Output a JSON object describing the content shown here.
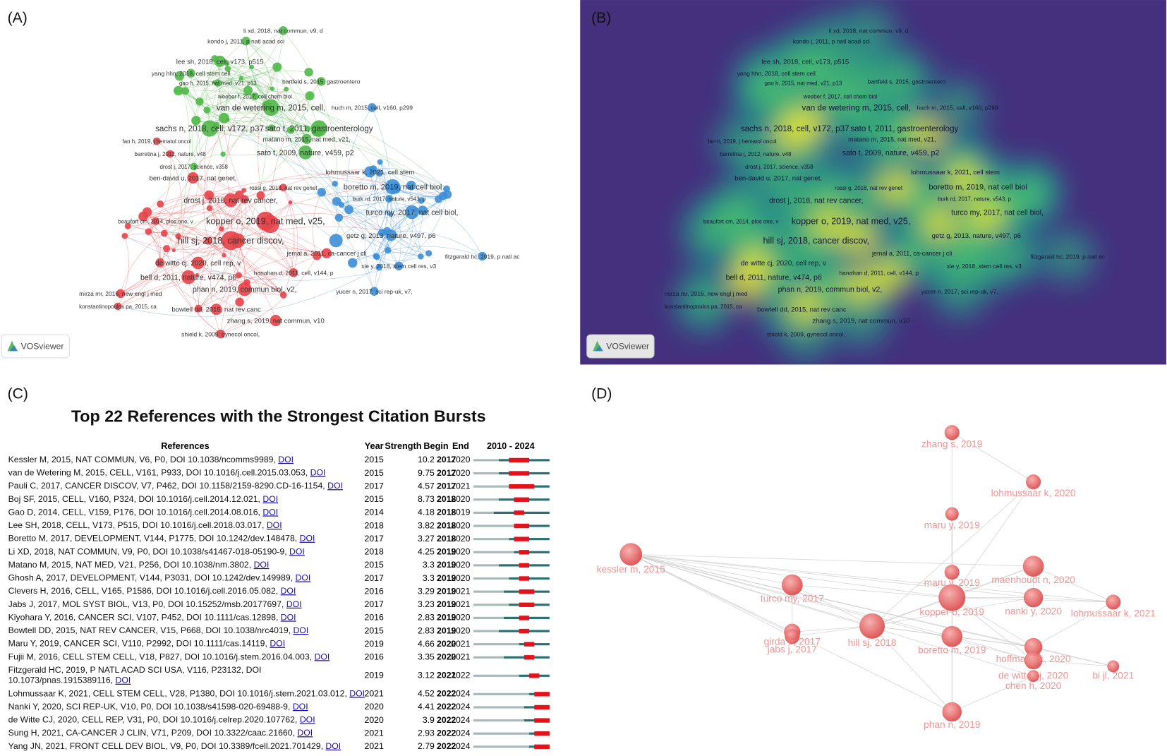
{
  "panels": {
    "a": {
      "label": "(A)",
      "watermark": "VOSviewer",
      "labels": [
        "li xd, 2018, nat commun, v9, d",
        "kondo j, 2011, p natl acad sci",
        "lee sh, 2018, cell, v173, p515",
        "yang hhn, 2018, cell stem cell",
        "gao h, 2015, nat med, v21, p13",
        "bartfeld s, 2015, gastroentero",
        "weeber f, 2017, cell chem biol",
        "van de wetering m, 2015, cell,",
        "huch m, 2015, cell, v160, p299",
        "sachs n, 2018, cell, v172, p37",
        "sato t, 2011, gastroenterology",
        "fan h, 2019, j hematol oncol",
        "matano m, 2015, nat med, v21,",
        "barretina j, 2012, nature, v48",
        "sato t, 2009, nature, v459, p2",
        "drost j, 2017, science, v358",
        "ben-david u, 2017, nat genet,",
        "lohmussaar k, 2021, cell stem",
        "rossi g, 2018, nat rev genet",
        "boretto m, 2019, nat cell biol",
        "burk rd, 2017, nature, v543, p",
        "drost j, 2018, nat rev cancer,",
        "turco my, 2017, nat cell biol,",
        "beaufort cm, 2014, plos one, v",
        "kopper o, 2019, nat med, v25,",
        "getz g, 2013, nature, v497, p6",
        "hill sj, 2018, cancer discov,",
        "jemal a, 2011, ca-cancer j cli",
        "fitzgerald hc, 2019, p natl ac",
        "de witte cj, 2020, cell rep, v",
        "hanahan d, 2011, cell, v144, p",
        "xie y, 2018, stem cell res, v3",
        "bell d, 2011, nature, v474, p6",
        "phan n, 2019, commun biol, v2,",
        "mirza mr, 2016, new engl j med",
        "yucer n, 2017, sci rep-uk, v7,",
        "konstantinopoulos pa, 2015, ca",
        "bowtell dd, 2015, nat rev canc",
        "zhang s, 2019, nat commun, v10",
        "shield k, 2009, gynecol oncol,"
      ]
    },
    "b": {
      "label": "(B)",
      "watermark": "VOSviewer"
    },
    "c": {
      "label": "(C)",
      "title": "Top 22 References with the Strongest Citation Bursts",
      "headers": {
        "references": "References",
        "year": "Year",
        "strength": "Strength",
        "begin": "Begin",
        "end": "End",
        "range": "2010 - 2024"
      },
      "rows": [
        {
          "lines": [
            "Kessler M, 2015, NAT COMMUN, V6, P0, DOI 10.1038/ncomms9989, "
          ],
          "link": "DOI",
          "year": 2015,
          "strength": 10.2,
          "begin": 2017,
          "end": 2020
        },
        {
          "lines": [
            "van de Wetering M, 2015, CELL, V161, P933, DOI 10.1016/j.cell.2015.03.053, "
          ],
          "link": "DOI",
          "year": 2015,
          "strength": 9.75,
          "begin": 2017,
          "end": 2020
        },
        {
          "lines": [
            "Pauli C, 2017, CANCER DISCOV, V7, P462, DOI 10.1158/2159-8290.CD-16-1154, "
          ],
          "link": "DOI",
          "year": 2017,
          "strength": 4.57,
          "begin": 2017,
          "end": 2021
        },
        {
          "lines": [
            "Boj SF, 2015, CELL, V160, P324, DOI 10.1016/j.cell.2014.12.021, "
          ],
          "link": "DOI",
          "year": 2015,
          "strength": 8.73,
          "begin": 2018,
          "end": 2020
        },
        {
          "lines": [
            "Gao D, 2014, CELL, V159, P176, DOI 10.1016/j.cell.2014.08.016, "
          ],
          "link": "DOI",
          "year": 2014,
          "strength": 4.18,
          "begin": 2018,
          "end": 2019
        },
        {
          "lines": [
            "Lee SH, 2018, CELL, V173, P515, DOI 10.1016/j.cell.2018.03.017, "
          ],
          "link": "DOI",
          "year": 2018,
          "strength": 3.82,
          "begin": 2018,
          "end": 2020
        },
        {
          "lines": [
            "Boretto M, 2017, DEVELOPMENT, V144, P1775, DOI 10.1242/dev.148478, "
          ],
          "link": "DOI",
          "year": 2017,
          "strength": 3.27,
          "begin": 2018,
          "end": 2020
        },
        {
          "lines": [
            "Li XD, 2018, NAT COMMUN, V9, P0, DOI 10.1038/s41467-018-05190-9, "
          ],
          "link": "DOI",
          "year": 2018,
          "strength": 4.25,
          "begin": 2019,
          "end": 2020
        },
        {
          "lines": [
            "Matano M, 2015, NAT MED, V21, P256, DOI 10.1038/nm.3802, "
          ],
          "link": "DOI",
          "year": 2015,
          "strength": 3.3,
          "begin": 2019,
          "end": 2020
        },
        {
          "lines": [
            "Ghosh A, 2017, DEVELOPMENT, V144, P3031, DOI 10.1242/dev.149989, "
          ],
          "link": "DOI",
          "year": 2017,
          "strength": 3.3,
          "begin": 2019,
          "end": 2020
        },
        {
          "lines": [
            "Clevers H, 2016, CELL, V165, P1586, DOI 10.1016/j.cell.2016.05.082, "
          ],
          "link": "DOI",
          "year": 2016,
          "strength": 3.29,
          "begin": 2019,
          "end": 2021
        },
        {
          "lines": [
            "Jabs J, 2017, MOL SYST BIOL, V13, P0, DOI 10.15252/msb.20177697, "
          ],
          "link": "DOI",
          "year": 2017,
          "strength": 3.23,
          "begin": 2019,
          "end": 2021
        },
        {
          "lines": [
            "Kiyohara Y, 2016, CANCER SCI, V107, P452, DOI 10.1111/cas.12898, "
          ],
          "link": "DOI",
          "year": 2016,
          "strength": 2.83,
          "begin": 2019,
          "end": 2020
        },
        {
          "lines": [
            "Bowtell DD, 2015, NAT REV CANCER, V15, P668, DOI 10.1038/nrc4019, "
          ],
          "link": "DOI",
          "year": 2015,
          "strength": 2.83,
          "begin": 2019,
          "end": 2020
        },
        {
          "lines": [
            "Maru Y, 2019, CANCER SCI, V110, P2992, DOI 10.1111/cas.14119, "
          ],
          "link": "DOI",
          "year": 2019,
          "strength": 4.66,
          "begin": 2020,
          "end": 2021
        },
        {
          "lines": [
            "Fujii M, 2016, CELL STEM CELL, V18, P827, DOI 10.1016/j.stem.2016.04.003, "
          ],
          "link": "DOI",
          "year": 2016,
          "strength": 3.35,
          "begin": 2020,
          "end": 2021
        },
        {
          "lines": [
            "Fitzgerald HC, 2019, P NATL ACAD SCI USA, V116, P23132, DOI",
            "10.1073/pnas.1915389116, "
          ],
          "link": "DOI",
          "year": 2019,
          "strength": 3.12,
          "begin": 2021,
          "end": 2022
        },
        {
          "lines": [
            "Lohmussaar K, 2021, CELL STEM CELL, V28, P1380, DOI 10.1016/j.stem.2021.03.012, "
          ],
          "link": "DOI",
          "year": 2021,
          "strength": 4.52,
          "begin": 2022,
          "end": 2024
        },
        {
          "lines": [
            "Nanki Y, 2020, SCI REP-UK, V10, P0, DOI 10.1038/s41598-020-69488-9, "
          ],
          "link": "DOI",
          "year": 2020,
          "strength": 4.41,
          "begin": 2022,
          "end": 2024
        },
        {
          "lines": [
            "de Witte CJ, 2020, CELL REP, V31, P0, DOI 10.1016/j.celrep.2020.107762, "
          ],
          "link": "DOI",
          "year": 2020,
          "strength": 3.9,
          "begin": 2022,
          "end": 2024
        },
        {
          "lines": [
            "Sung H, 2021, CA-CANCER J CLIN, V71, P209, DOI 10.3322/caac.21660, "
          ],
          "link": "DOI",
          "year": 2021,
          "strength": 2.93,
          "begin": 2022,
          "end": 2024
        },
        {
          "lines": [
            "Yang JN, 2021, FRONT CELL DEV BIOL, V9, P0, DOI 10.3389/fcell.2021.701429, "
          ],
          "link": "DOI",
          "year": 2021,
          "strength": 2.79,
          "begin": 2022,
          "end": 2024
        }
      ]
    },
    "d": {
      "label": "(D)",
      "nodes": [
        "zhang s, 2019",
        "lohmussaar k, 2020",
        "maru y, 2019",
        "kessler m, 2015",
        "turco my, 2017",
        "maru y, 2019",
        "maenhoudt n, 2020",
        "kopper o, 2019",
        "nanki y, 2020",
        "lohmussaar k, 2021",
        "girda e, 2017",
        "jabs j, 2017",
        "hill sj, 2018",
        "boretto m, 2019",
        "hoffmann k, 2020",
        "de witte cj, 2020",
        "chen h, 2020",
        "bi jl, 2021",
        "phan n, 2019"
      ]
    }
  }
}
